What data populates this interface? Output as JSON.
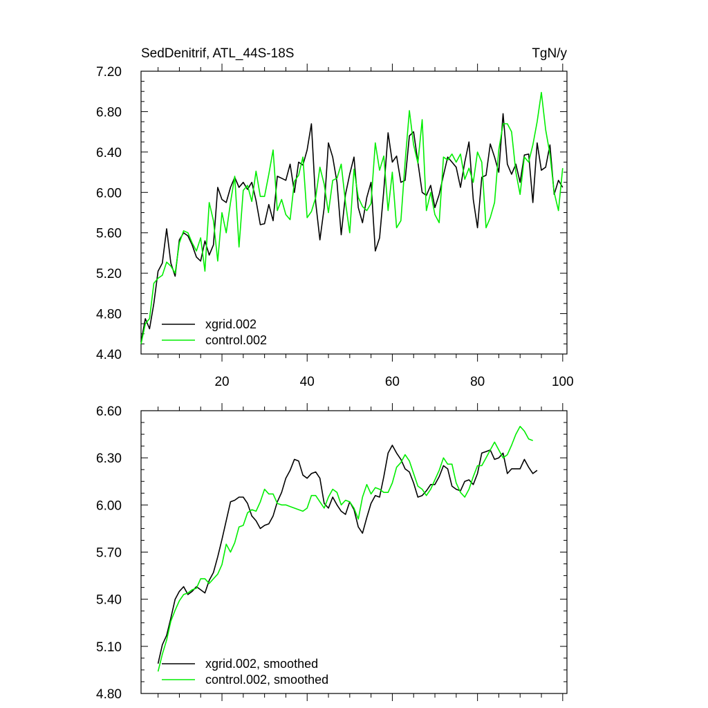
{
  "chart_data": [
    {
      "type": "line",
      "title": "SedDenitrif, ATL_44S-18S",
      "units": "TgN/y",
      "xlim": [
        1,
        101
      ],
      "ylim": [
        4.4,
        7.2
      ],
      "xticks": [
        20,
        40,
        60,
        80,
        100
      ],
      "xtick_labels": [
        "20",
        "40",
        "60",
        "80",
        "100"
      ],
      "yticks": [
        4.4,
        4.8,
        5.2,
        5.6,
        6.0,
        6.4,
        6.8,
        7.2
      ],
      "ytick_labels": [
        "4.40",
        "4.80",
        "5.20",
        "5.60",
        "6.00",
        "6.40",
        "6.80",
        "7.20"
      ],
      "legend_position": "bottom-left",
      "series": [
        {
          "name": "xgrid.002",
          "color": "#000000",
          "x_start": 1,
          "values": [
            4.52,
            4.75,
            4.65,
            4.9,
            5.22,
            5.3,
            5.64,
            5.3,
            5.17,
            5.53,
            5.6,
            5.57,
            5.48,
            5.36,
            5.32,
            5.52,
            5.38,
            5.48,
            6.05,
            5.93,
            5.9,
            6.05,
            6.15,
            6.05,
            6.1,
            6.03,
            6.1,
            5.92,
            5.68,
            5.69,
            5.88,
            5.72,
            6.16,
            6.14,
            6.12,
            6.28,
            6.0,
            6.3,
            6.27,
            6.42,
            6.68,
            5.9,
            5.53,
            5.85,
            6.49,
            6.35,
            6.1,
            5.58,
            5.98,
            6.18,
            6.35,
            5.85,
            5.7,
            5.95,
            6.1,
            5.42,
            5.55,
            6.02,
            6.59,
            6.3,
            6.36,
            6.1,
            6.12,
            6.56,
            6.6,
            6.3,
            6.0,
            5.97,
            6.07,
            5.85,
            5.98,
            6.17,
            6.35,
            6.3,
            6.25,
            6.05,
            6.3,
            6.5,
            5.93,
            5.65,
            6.15,
            6.17,
            6.48,
            6.35,
            6.2,
            6.78,
            6.28,
            6.18,
            6.28,
            6.1,
            6.37,
            6.38,
            5.9,
            6.49,
            6.22,
            6.25,
            6.47,
            5.98,
            6.12,
            6.05
          ]
        },
        {
          "name": "control.002",
          "color": "#00ee00",
          "x_start": 1,
          "values": [
            4.5,
            4.7,
            4.75,
            5.1,
            5.15,
            5.18,
            5.31,
            5.27,
            5.2,
            5.5,
            5.62,
            5.6,
            5.5,
            5.42,
            5.55,
            5.22,
            5.9,
            5.72,
            5.32,
            5.8,
            5.6,
            5.9,
            6.16,
            5.46,
            6.02,
            6.07,
            5.91,
            6.21,
            5.96,
            5.96,
            6.18,
            6.42,
            5.82,
            5.93,
            5.78,
            5.73,
            6.11,
            6.17,
            6.35,
            5.75,
            5.81,
            5.95,
            6.25,
            6.08,
            5.8,
            6.12,
            6.14,
            6.28,
            5.9,
            5.6,
            6.23,
            5.95,
            5.86,
            5.82,
            5.89,
            6.49,
            6.22,
            6.36,
            5.82,
            6.2,
            5.65,
            5.72,
            6.3,
            6.81,
            6.47,
            6.29,
            6.72,
            5.82,
            6.0,
            5.78,
            5.7,
            6.35,
            6.32,
            6.38,
            6.3,
            6.38,
            6.13,
            6.24,
            6.1,
            6.4,
            6.3,
            5.65,
            5.75,
            5.9,
            6.42,
            6.68,
            6.68,
            6.6,
            6.2,
            5.98,
            6.35,
            6.3,
            6.47,
            6.7,
            6.99,
            6.62,
            6.38,
            6.0,
            5.82,
            6.24
          ]
        }
      ]
    },
    {
      "type": "line",
      "title": "",
      "units": "",
      "xlim": [
        1,
        101
      ],
      "ylim": [
        4.8,
        6.6
      ],
      "xticks": [
        20,
        40,
        60,
        80,
        100
      ],
      "xtick_labels": [],
      "yticks": [
        4.8,
        5.1,
        5.4,
        5.7,
        6.0,
        6.3,
        6.6
      ],
      "ytick_labels": [
        "4.80",
        "5.10",
        "5.40",
        "5.70",
        "6.00",
        "6.30",
        "6.60"
      ],
      "legend_position": "bottom-left",
      "series": [
        {
          "name": "xgrid.002, smoothed",
          "color": "#000000",
          "x_start": 5,
          "values": [
            4.99,
            5.11,
            5.17,
            5.28,
            5.4,
            5.45,
            5.48,
            5.43,
            5.45,
            5.48,
            5.46,
            5.44,
            5.52,
            5.57,
            5.67,
            5.78,
            5.9,
            6.02,
            6.03,
            6.05,
            6.05,
            6.01,
            5.93,
            5.9,
            5.85,
            5.87,
            5.88,
            5.93,
            6.02,
            6.08,
            6.17,
            6.22,
            6.29,
            6.28,
            6.19,
            6.17,
            6.2,
            6.21,
            6.17,
            6.01,
            5.98,
            6.05,
            6.0,
            5.96,
            5.94,
            6.02,
            5.97,
            5.86,
            5.82,
            5.92,
            6.01,
            6.06,
            6.05,
            6.18,
            6.33,
            6.38,
            6.33,
            6.29,
            6.23,
            6.21,
            6.14,
            6.05,
            6.06,
            6.09,
            6.13,
            6.13,
            6.18,
            6.25,
            6.23,
            6.12,
            6.1,
            6.09,
            6.15,
            6.16,
            6.13,
            6.2,
            6.33,
            6.34,
            6.35,
            6.29,
            6.3,
            6.33,
            6.2,
            6.23,
            6.23,
            6.23,
            6.29,
            6.24,
            6.2,
            6.22
          ]
        },
        {
          "name": "control.002, smoothed",
          "color": "#00ee00",
          "x_start": 5,
          "values": [
            4.94,
            5.05,
            5.14,
            5.26,
            5.33,
            5.39,
            5.43,
            5.44,
            5.46,
            5.47,
            5.53,
            5.53,
            5.5,
            5.53,
            5.56,
            5.62,
            5.75,
            5.7,
            5.76,
            5.86,
            5.87,
            5.95,
            5.97,
            5.96,
            6.02,
            6.1,
            6.07,
            6.07,
            6.01,
            6.0,
            6.0,
            5.99,
            5.98,
            5.97,
            5.96,
            5.98,
            6.06,
            6.06,
            6.02,
            5.98,
            6.05,
            6.1,
            6.08,
            6.0,
            6.03,
            6.02,
            5.98,
            5.91,
            6.05,
            6.13,
            6.07,
            6.11,
            6.1,
            6.08,
            6.08,
            6.14,
            6.24,
            6.27,
            6.32,
            6.28,
            6.2,
            6.12,
            6.1,
            6.06,
            6.1,
            6.16,
            6.22,
            6.3,
            6.26,
            6.26,
            6.14,
            6.08,
            6.05,
            6.1,
            6.18,
            6.25,
            6.25,
            6.3,
            6.35,
            6.4,
            6.35,
            6.3,
            6.32,
            6.38,
            6.45,
            6.5,
            6.47,
            6.42,
            6.41
          ]
        }
      ]
    }
  ]
}
